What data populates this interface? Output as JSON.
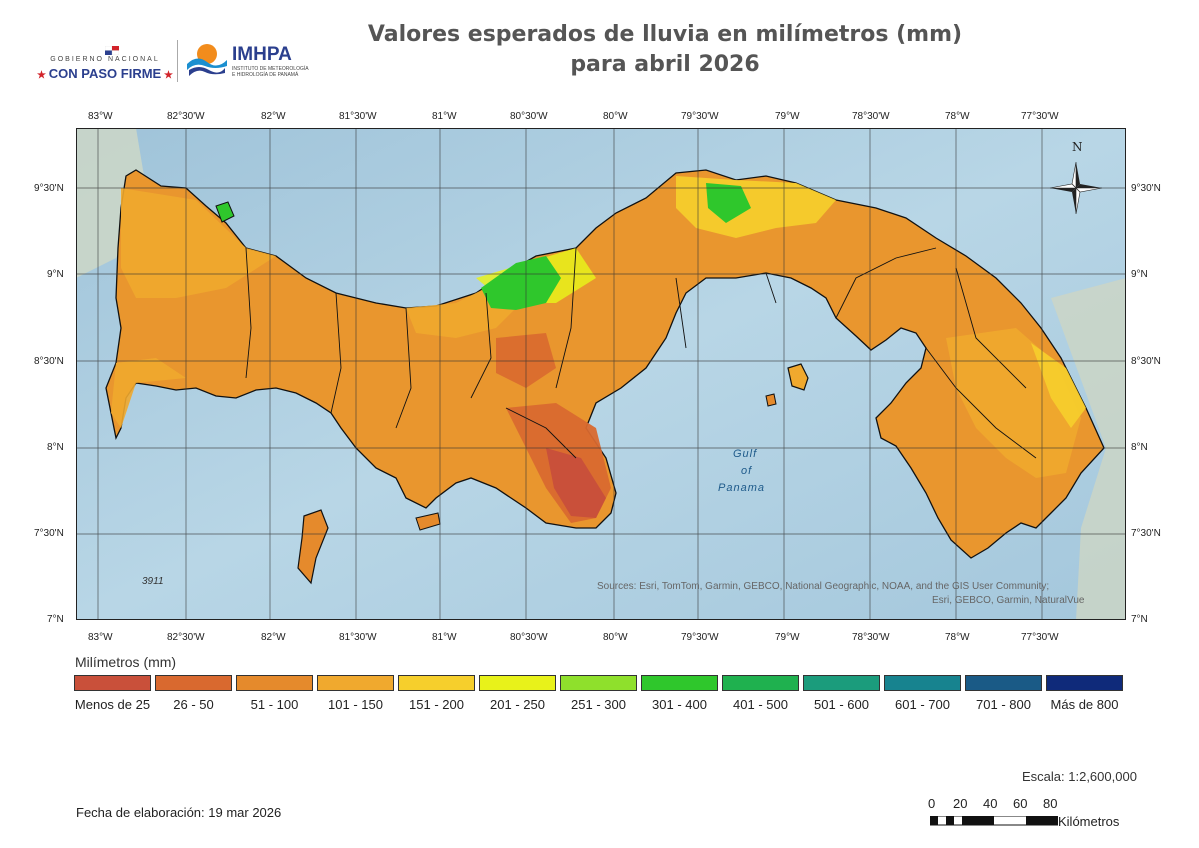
{
  "header": {
    "title_line1": "Valores esperados de lluvia en milímetros (mm)",
    "title_line2": "para abril 2026",
    "gov_line1": "GOBIERNO NACIONAL",
    "gov_line2": "CON PASO FIRME",
    "agency_name": "IMHPA",
    "agency_sub": "INSTITUTO DE METEOROLOGÍA E HIDROLOGÍA DE PANAMÁ"
  },
  "map": {
    "lon_ticks": [
      "83°W",
      "82°30'W",
      "82°W",
      "81°30'W",
      "81°W",
      "80°30'W",
      "80°W",
      "79°30'W",
      "79°W",
      "78°30'W",
      "78°W",
      "77°30'W"
    ],
    "lat_ticks": [
      "9°30'N",
      "9°N",
      "8°30'N",
      "8°N",
      "7°30'N",
      "7°N"
    ],
    "gulf_label": [
      "Gulf",
      "of",
      "Panama"
    ],
    "depth_label": "3911",
    "north_label": "N",
    "attribution_line1": "Sources: Esri, TomTom, Garmin, GEBCO, National Geographic, NOAA, and the GIS User Community;",
    "attribution_line2": "Esri, GEBCO, Garmin, NaturalVue"
  },
  "legend": {
    "title": "Milímetros (mm)",
    "classes": [
      {
        "label": "Menos de 25",
        "color": "#c9503a"
      },
      {
        "label": "26 - 50",
        "color": "#d9692f"
      },
      {
        "label": "51 - 100",
        "color": "#e58a2c"
      },
      {
        "label": "101 - 150",
        "color": "#f0a92e"
      },
      {
        "label": "151 - 200",
        "color": "#f6cf2c"
      },
      {
        "label": "201 - 250",
        "color": "#e8f21a"
      },
      {
        "label": "251 - 300",
        "color": "#8fe02c"
      },
      {
        "label": "301 - 400",
        "color": "#2fc72c"
      },
      {
        "label": "401 - 500",
        "color": "#1fb14f"
      },
      {
        "label": "501 - 600",
        "color": "#1b9c7c"
      },
      {
        "label": "601 - 700",
        "color": "#17838f"
      },
      {
        "label": "701 - 800",
        "color": "#1a5a86"
      },
      {
        "label": "Más de 800",
        "color": "#0f2a7a"
      }
    ]
  },
  "footer": {
    "scale_text": "Escala: 1:2,600,000",
    "fecha": "Fecha de elaboración: 19 mar 2026",
    "scalebar_numbers": [
      "0",
      "20",
      "40",
      "60",
      "80"
    ],
    "scalebar_unit": "Kilómetros"
  }
}
